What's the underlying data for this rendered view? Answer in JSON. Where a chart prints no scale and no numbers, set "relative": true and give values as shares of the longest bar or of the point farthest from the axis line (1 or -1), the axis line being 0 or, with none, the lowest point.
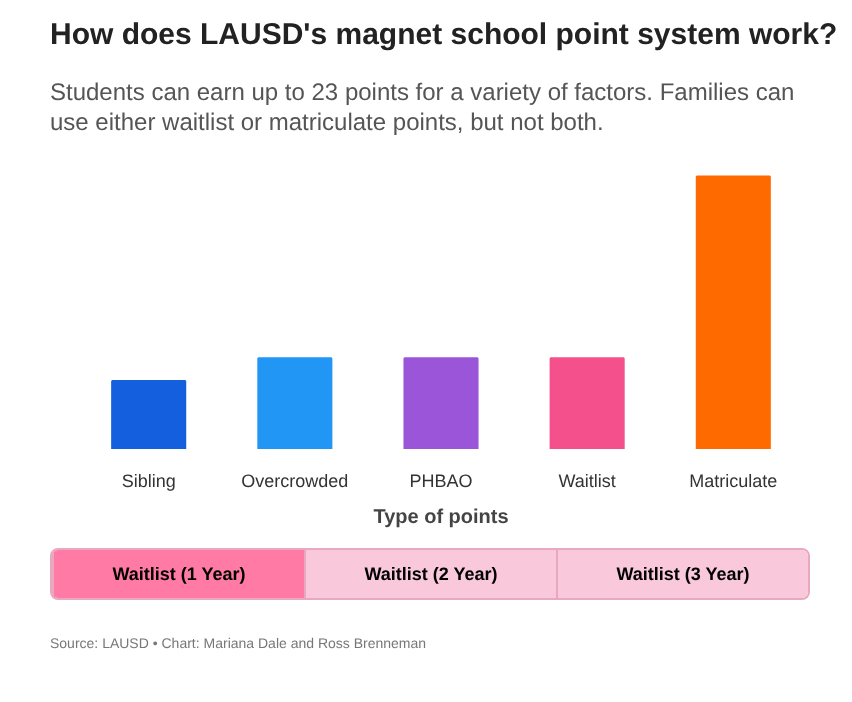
{
  "chart_data": {
    "type": "bar",
    "title": "How does LAUSD's magnet school point system work?",
    "subtitle": "Students can earn up to 23 points for a variety of factors. Families can use either waitlist or matriculate points, but not both.",
    "xlabel": "Type of points",
    "categories": [
      "Sibling",
      "Overcrowded",
      "PHBAO",
      "Waitlist",
      "Matriculate"
    ],
    "values": [
      0.25,
      0.333,
      0.333,
      0.333,
      1
    ],
    "colors": [
      "#135fdd",
      "#2196f5",
      "#9a55d9",
      "#f4508c",
      "#ff6a00"
    ],
    "relative": true,
    "grid": false,
    "annotations": [
      "Waitlist (1 Year)",
      "Waitlist (2 Year)",
      "Waitlist (3 Year)",
      "Source: LAUSD • Chart: Mariana Dale and Ross Brenneman"
    ]
  }
}
